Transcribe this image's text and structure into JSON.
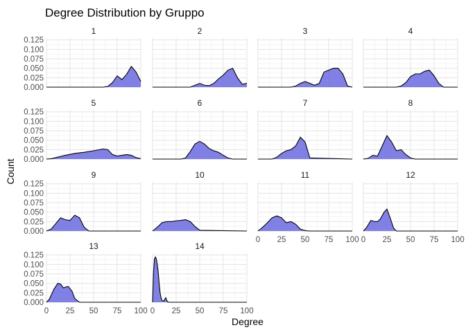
{
  "chart_data": {
    "type": "area",
    "title": "Degree Distribution by Gruppo",
    "xlabel": "Degree",
    "ylabel": "Count",
    "xlim": [
      0,
      100
    ],
    "ylim": [
      0,
      0.13
    ],
    "x_ticks": [
      0,
      25,
      50,
      75,
      100
    ],
    "y_ticks": [
      0.0,
      0.025,
      0.05,
      0.075,
      0.1,
      0.125
    ],
    "y_tick_labels": [
      "0.000",
      "0.025",
      "0.050",
      "0.075",
      "0.100",
      "0.125"
    ],
    "grid": true,
    "fill_color": "#6b6be0",
    "line_color": "#000000",
    "panels": [
      {
        "label": "1",
        "x": [
          0,
          60,
          65,
          70,
          75,
          80,
          85,
          90,
          95,
          100
        ],
        "y": [
          0,
          0,
          0.002,
          0.012,
          0.03,
          0.02,
          0.034,
          0.055,
          0.04,
          0.015
        ]
      },
      {
        "label": "2",
        "x": [
          0,
          40,
          45,
          50,
          55,
          60,
          65,
          70,
          75,
          80,
          85,
          90,
          95,
          100
        ],
        "y": [
          0,
          0,
          0.005,
          0.01,
          0.005,
          0.004,
          0.01,
          0.022,
          0.032,
          0.045,
          0.05,
          0.025,
          0.008,
          0.01
        ]
      },
      {
        "label": "3",
        "x": [
          0,
          35,
          40,
          45,
          50,
          55,
          60,
          65,
          70,
          75,
          80,
          85,
          90,
          95,
          100
        ],
        "y": [
          0,
          0,
          0.003,
          0.01,
          0.015,
          0.01,
          0.005,
          0.01,
          0.04,
          0.045,
          0.05,
          0.05,
          0.035,
          0.003,
          0
        ]
      },
      {
        "label": "4",
        "x": [
          0,
          35,
          40,
          45,
          50,
          55,
          60,
          65,
          70,
          75,
          80,
          85,
          100
        ],
        "y": [
          0,
          0,
          0.003,
          0.012,
          0.028,
          0.035,
          0.035,
          0.042,
          0.045,
          0.03,
          0.01,
          0,
          0
        ]
      },
      {
        "label": "5",
        "x": [
          0,
          5,
          10,
          20,
          30,
          40,
          50,
          60,
          65,
          70,
          75,
          80,
          85,
          90,
          95,
          100
        ],
        "y": [
          0,
          0.001,
          0.004,
          0.01,
          0.015,
          0.018,
          0.022,
          0.027,
          0.025,
          0.012,
          0.008,
          0.01,
          0.012,
          0.01,
          0.004,
          0.001
        ]
      },
      {
        "label": "6",
        "x": [
          0,
          30,
          35,
          40,
          45,
          50,
          55,
          60,
          65,
          70,
          75,
          80,
          85,
          100
        ],
        "y": [
          0,
          0,
          0.003,
          0.02,
          0.04,
          0.047,
          0.04,
          0.028,
          0.022,
          0.018,
          0.01,
          0.003,
          0,
          0
        ]
      },
      {
        "label": "7",
        "x": [
          0,
          15,
          20,
          25,
          30,
          35,
          40,
          45,
          50,
          55,
          100
        ],
        "y": [
          0,
          0,
          0.005,
          0.015,
          0.022,
          0.025,
          0.035,
          0.058,
          0.045,
          0.003,
          0
        ]
      },
      {
        "label": "8",
        "x": [
          0,
          5,
          10,
          15,
          20,
          25,
          30,
          35,
          40,
          45,
          50,
          55,
          100
        ],
        "y": [
          0,
          0.002,
          0.01,
          0.008,
          0.035,
          0.062,
          0.045,
          0.022,
          0.025,
          0.012,
          0.003,
          0,
          0
        ]
      },
      {
        "label": "9",
        "x": [
          0,
          5,
          10,
          15,
          20,
          25,
          30,
          35,
          40,
          45,
          100
        ],
        "y": [
          0,
          0.005,
          0.02,
          0.035,
          0.03,
          0.028,
          0.042,
          0.035,
          0.01,
          0,
          0
        ]
      },
      {
        "label": "10",
        "x": [
          0,
          5,
          10,
          15,
          20,
          25,
          30,
          35,
          40,
          45,
          50,
          100
        ],
        "y": [
          0,
          0.01,
          0.022,
          0.025,
          0.025,
          0.027,
          0.028,
          0.03,
          0.025,
          0.012,
          0.002,
          0
        ]
      },
      {
        "label": "11",
        "x": [
          0,
          5,
          10,
          15,
          20,
          25,
          30,
          35,
          40,
          45,
          50,
          55,
          100
        ],
        "y": [
          0,
          0.01,
          0.022,
          0.035,
          0.04,
          0.035,
          0.022,
          0.025,
          0.018,
          0.005,
          0.001,
          0,
          0
        ]
      },
      {
        "label": "12",
        "x": [
          0,
          3,
          8,
          12,
          15,
          18,
          22,
          25,
          28,
          32,
          35,
          100
        ],
        "y": [
          0,
          0.008,
          0.028,
          0.025,
          0.025,
          0.032,
          0.05,
          0.058,
          0.038,
          0.008,
          0,
          0
        ]
      },
      {
        "label": "13",
        "x": [
          0,
          3,
          8,
          12,
          15,
          18,
          20,
          23,
          27,
          30,
          35,
          100
        ],
        "y": [
          0,
          0.008,
          0.035,
          0.05,
          0.048,
          0.038,
          0.04,
          0.042,
          0.03,
          0.01,
          0,
          0
        ]
      },
      {
        "label": "14",
        "x": [
          0,
          1,
          2,
          3,
          4,
          5,
          6,
          7,
          8,
          9,
          10,
          12,
          13,
          14,
          15,
          16,
          18,
          100
        ],
        "y": [
          0,
          0.08,
          0.115,
          0.12,
          0.115,
          0.1,
          0.08,
          0.05,
          0.025,
          0.012,
          0.005,
          0.003,
          0.008,
          0.012,
          0.005,
          0.001,
          0,
          0
        ]
      }
    ]
  }
}
